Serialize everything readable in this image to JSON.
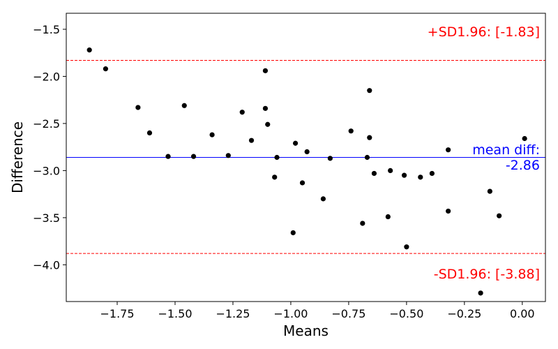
{
  "chart_data": {
    "type": "scatter",
    "title": "",
    "xlabel": "Means",
    "ylabel": "Difference",
    "xlim": [
      -1.97,
      0.1
    ],
    "ylim": [
      -4.39,
      -1.33
    ],
    "x_ticks": [
      -1.75,
      -1.5,
      -1.25,
      -1.0,
      -0.75,
      -0.5,
      -0.25,
      0.0
    ],
    "x_tick_labels": [
      "−1.75",
      "−1.50",
      "−1.25",
      "−1.00",
      "−0.75",
      "−0.50",
      "−0.25",
      "0.00"
    ],
    "y_ticks": [
      -1.5,
      -2.0,
      -2.5,
      -3.0,
      -3.5,
      -4.0
    ],
    "y_tick_labels": [
      "−1.5",
      "−2.0",
      "−2.5",
      "−3.0",
      "−3.5",
      "−4.0"
    ],
    "grid": false,
    "point_color": "#000000",
    "points": [
      {
        "x": -1.87,
        "y": -1.72
      },
      {
        "x": -1.8,
        "y": -1.92
      },
      {
        "x": -1.66,
        "y": -2.33
      },
      {
        "x": -1.61,
        "y": -2.6
      },
      {
        "x": -1.53,
        "y": -2.85
      },
      {
        "x": -1.46,
        "y": -2.31
      },
      {
        "x": -1.42,
        "y": -2.85
      },
      {
        "x": -1.34,
        "y": -2.62
      },
      {
        "x": -1.27,
        "y": -2.84
      },
      {
        "x": -1.21,
        "y": -2.38
      },
      {
        "x": -1.17,
        "y": -2.68
      },
      {
        "x": -1.11,
        "y": -1.94
      },
      {
        "x": -1.11,
        "y": -2.34
      },
      {
        "x": -1.1,
        "y": -2.51
      },
      {
        "x": -1.07,
        "y": -3.07
      },
      {
        "x": -1.06,
        "y": -2.86
      },
      {
        "x": -0.99,
        "y": -3.66
      },
      {
        "x": -0.98,
        "y": -2.71
      },
      {
        "x": -0.95,
        "y": -3.13
      },
      {
        "x": -0.93,
        "y": -2.8
      },
      {
        "x": -0.86,
        "y": -3.3
      },
      {
        "x": -0.83,
        "y": -2.87
      },
      {
        "x": -0.74,
        "y": -2.58
      },
      {
        "x": -0.69,
        "y": -3.56
      },
      {
        "x": -0.67,
        "y": -2.86
      },
      {
        "x": -0.66,
        "y": -2.15
      },
      {
        "x": -0.66,
        "y": -2.65
      },
      {
        "x": -0.64,
        "y": -3.03
      },
      {
        "x": -0.58,
        "y": -3.49
      },
      {
        "x": -0.57,
        "y": -3.0
      },
      {
        "x": -0.51,
        "y": -3.05
      },
      {
        "x": -0.5,
        "y": -3.81
      },
      {
        "x": -0.44,
        "y": -3.07
      },
      {
        "x": -0.39,
        "y": -3.03
      },
      {
        "x": -0.32,
        "y": -3.43
      },
      {
        "x": -0.32,
        "y": -2.78
      },
      {
        "x": -0.18,
        "y": -4.3
      },
      {
        "x": -0.14,
        "y": -3.22
      },
      {
        "x": -0.1,
        "y": -3.48
      },
      {
        "x": 0.01,
        "y": -2.66
      }
    ],
    "reference_lines": [
      {
        "name": "upper",
        "value": -1.83,
        "color": "#ff0000",
        "style": "dashed",
        "label": "+SD1.96: [-1.83]"
      },
      {
        "name": "mean",
        "value": -2.86,
        "color": "#0000ff",
        "style": "solid",
        "label_line1": "mean diff:",
        "label_line2": "-2.86"
      },
      {
        "name": "lower",
        "value": -3.88,
        "color": "#ff0000",
        "style": "dashed",
        "label": "-SD1.96: [-3.88]"
      }
    ]
  }
}
